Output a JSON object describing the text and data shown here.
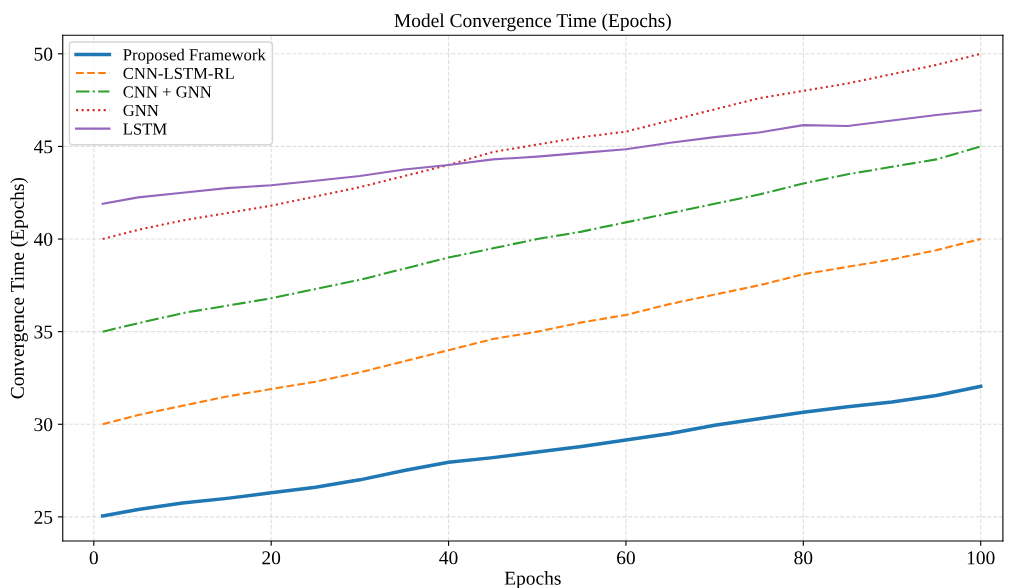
{
  "chart_data": {
    "type": "line",
    "title": "Model Convergence Time (Epochs)",
    "xlabel": "Epochs",
    "ylabel": "Convergence Time (Epochs)",
    "x": [
      1,
      5,
      10,
      15,
      20,
      25,
      30,
      35,
      40,
      45,
      50,
      55,
      60,
      65,
      70,
      75,
      80,
      85,
      90,
      95,
      100
    ],
    "series": [
      {
        "name": "Proposed Framework",
        "color": "#1f77b4",
        "line_style": "solid",
        "values": [
          25.05,
          25.4,
          25.75,
          26.0,
          26.3,
          26.6,
          27.0,
          27.5,
          27.95,
          28.2,
          28.5,
          28.8,
          29.15,
          29.5,
          29.95,
          30.3,
          30.65,
          30.95,
          31.2,
          31.55,
          32.05
        ]
      },
      {
        "name": "CNN-LSTM-RL",
        "color": "#ff7f0e",
        "line_style": "dashed",
        "values": [
          30.0,
          30.5,
          31.0,
          31.5,
          31.9,
          32.3,
          32.8,
          33.4,
          34.0,
          34.6,
          35.0,
          35.5,
          35.9,
          36.5,
          37.0,
          37.5,
          38.1,
          38.5,
          38.9,
          39.4,
          40.0
        ]
      },
      {
        "name": "CNN + GNN",
        "color": "#2ca02c",
        "line_style": "dashdot",
        "values": [
          35.0,
          35.45,
          36.0,
          36.4,
          36.8,
          37.3,
          37.8,
          38.4,
          39.0,
          39.5,
          40.0,
          40.4,
          40.9,
          41.4,
          41.9,
          42.4,
          43.0,
          43.5,
          43.9,
          44.3,
          45.0
        ]
      },
      {
        "name": "GNN",
        "color": "#d62728",
        "line_style": "dotted",
        "values": [
          40.0,
          40.5,
          41.0,
          41.4,
          41.8,
          42.3,
          42.8,
          43.4,
          44.0,
          44.7,
          45.1,
          45.5,
          45.8,
          46.4,
          47.0,
          47.6,
          48.0,
          48.4,
          48.9,
          49.4,
          50.0
        ]
      },
      {
        "name": "LSTM",
        "color": "#9467bd",
        "line_style": "solid",
        "values": [
          41.9,
          42.25,
          42.5,
          42.75,
          42.9,
          43.15,
          43.4,
          43.75,
          44.0,
          44.3,
          44.45,
          44.65,
          44.85,
          45.2,
          45.5,
          45.75,
          46.15,
          46.1,
          46.4,
          46.7,
          46.95
        ]
      }
    ],
    "xlim": [
      -3.5,
      102.5
    ],
    "xticks": [
      0,
      20,
      40,
      60,
      80,
      100
    ],
    "ylim": [
      23.7,
      51
    ],
    "yticks": [
      25,
      30,
      35,
      40,
      45,
      50
    ],
    "grid": true,
    "legend": "top left"
  }
}
